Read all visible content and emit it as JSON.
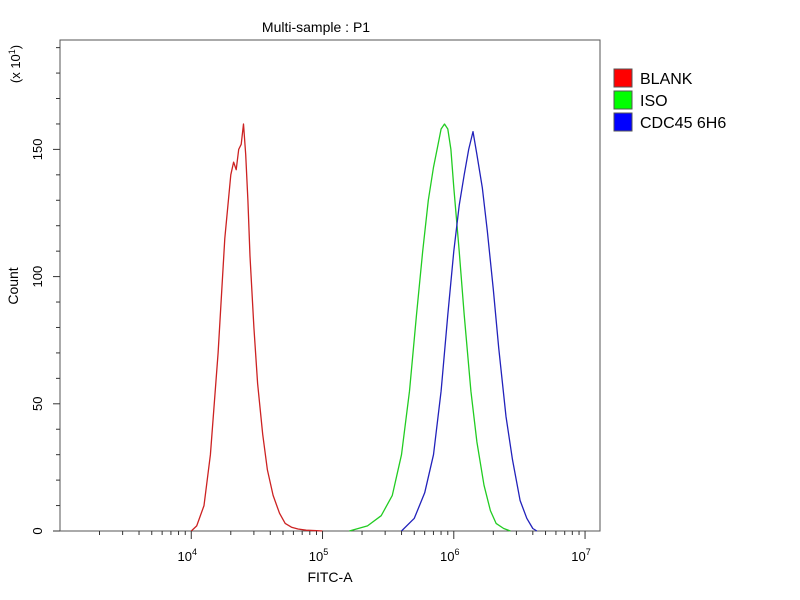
{
  "chart_data": {
    "type": "line",
    "title": "Multi-sample : P1",
    "xlabel": "FITC-A",
    "ylabel": "Count",
    "y_multiplier_label": {
      "base": "(x 10",
      "exp": "1",
      "close": ")"
    },
    "x_scale": "log",
    "xlim": [
      1000,
      13000000
    ],
    "ylim": [
      0,
      193
    ],
    "x_ticks": [
      {
        "value": 10000,
        "base": "10",
        "exp": "4"
      },
      {
        "value": 100000,
        "base": "10",
        "exp": "5"
      },
      {
        "value": 1000000,
        "base": "10",
        "exp": "6"
      },
      {
        "value": 10000000,
        "base": "10",
        "exp": "7"
      }
    ],
    "y_ticks": [
      0,
      50,
      100,
      150
    ],
    "grid": false,
    "legend_position": "right",
    "series": [
      {
        "name": "BLANK",
        "color": "#ff0000",
        "stroke": "#cc2222",
        "x": [
          10000,
          11000,
          12500,
          14000,
          16000,
          18000,
          20000,
          21000,
          22000,
          23000,
          24000,
          25000,
          26000,
          27000,
          28000,
          30000,
          32000,
          35000,
          38000,
          42000,
          47000,
          52000,
          58000,
          65000,
          75000,
          90000,
          100000
        ],
        "y": [
          0,
          2,
          10,
          30,
          70,
          115,
          140,
          145,
          142,
          150,
          152,
          160,
          148,
          130,
          108,
          80,
          58,
          38,
          24,
          14,
          7,
          3,
          1.5,
          0.8,
          0.3,
          0.1,
          0
        ]
      },
      {
        "name": "ISO",
        "color": "#00ff00",
        "stroke": "#22cc22",
        "x": [
          160000,
          220000,
          280000,
          340000,
          400000,
          460000,
          520000,
          580000,
          640000,
          700000,
          760000,
          800000,
          850000,
          900000,
          950000,
          1000000,
          1100000,
          1200000,
          1350000,
          1500000,
          1700000,
          1900000,
          2100000,
          2400000,
          2700000
        ],
        "y": [
          0,
          2,
          6,
          14,
          30,
          55,
          85,
          110,
          130,
          143,
          152,
          158,
          160,
          158,
          150,
          135,
          110,
          85,
          55,
          35,
          18,
          8,
          3,
          1,
          0
        ]
      },
      {
        "name": "CDC45 6H6",
        "color": "#0000ff",
        "stroke": "#2222bb",
        "x": [
          400000,
          500000,
          600000,
          700000,
          800000,
          900000,
          1000000,
          1100000,
          1200000,
          1300000,
          1400000,
          1500000,
          1650000,
          1800000,
          2000000,
          2200000,
          2500000,
          2800000,
          3200000,
          3600000,
          4000000,
          4300000
        ],
        "y": [
          0,
          5,
          15,
          30,
          55,
          85,
          110,
          128,
          140,
          150,
          157,
          148,
          135,
          118,
          95,
          72,
          45,
          28,
          12,
          5,
          1,
          0
        ]
      }
    ]
  }
}
